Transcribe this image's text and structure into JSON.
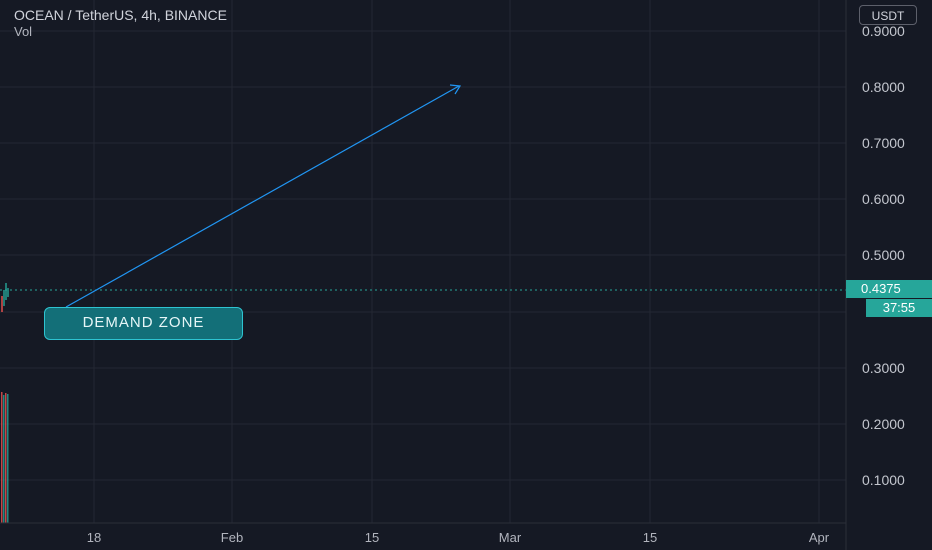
{
  "header": {
    "symbol": "OCEAN / TetherUS, 4h, BINANCE",
    "indicator": "Vol"
  },
  "price_axis": {
    "currency": "USDT",
    "ticks": [
      "0.9000",
      "0.8000",
      "0.7000",
      "0.6000",
      "0.5000",
      "0.3000",
      "0.2000",
      "0.1000"
    ],
    "current_price": "0.4375",
    "countdown": "37:55"
  },
  "time_axis": {
    "ticks": [
      "18",
      "Feb",
      "15",
      "Mar",
      "15",
      "Apr"
    ]
  },
  "annotation": {
    "label": "DEMAND ZONE"
  },
  "colors": {
    "background": "#151924",
    "grid": "#242733",
    "axis_text": "#b2b5be",
    "up": "#26a69a",
    "down": "#ef5350",
    "arrow": "#2196f3",
    "label_fill": "#136f78",
    "label_border": "#2ec4d1"
  }
}
